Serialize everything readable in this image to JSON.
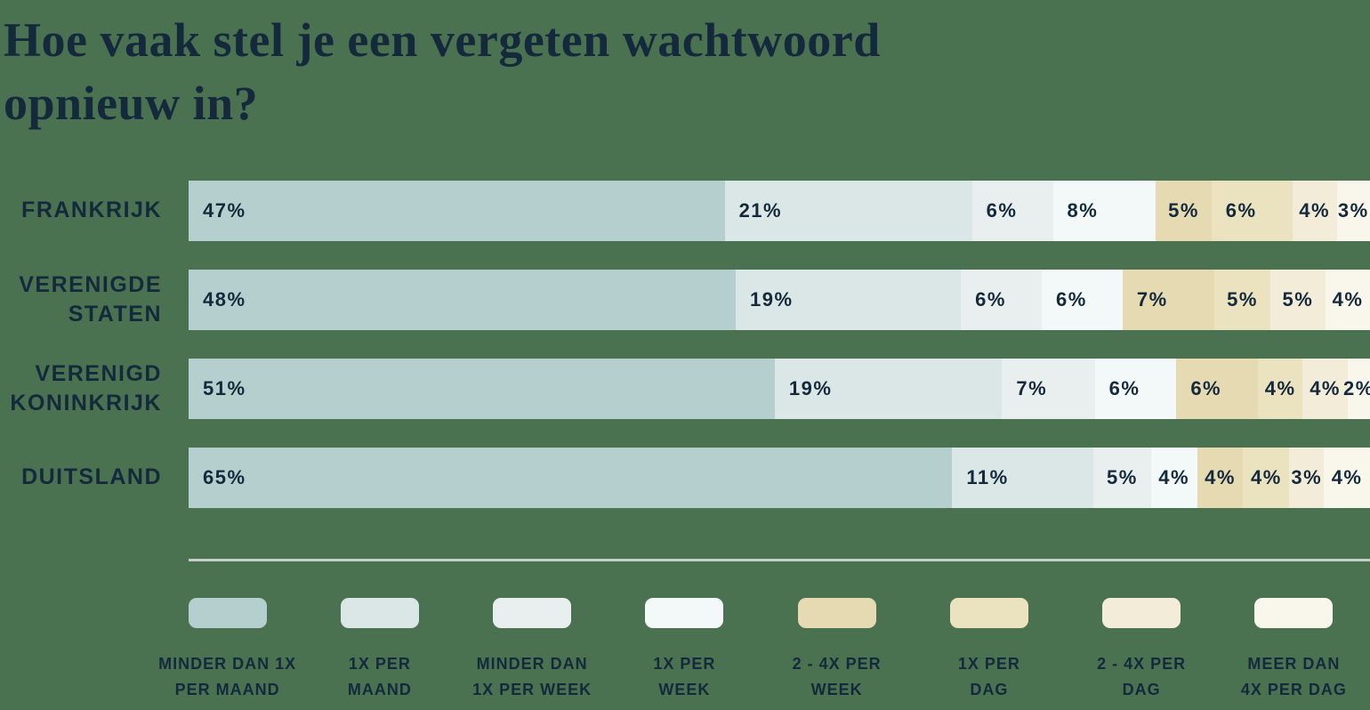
{
  "title": {
    "line1": "Hoe vaak stel je een vergeten wachtwoord",
    "line2": "opnieuw in?"
  },
  "background_color": "#4a7150",
  "text_color": "#142a3c",
  "divider_color": "#c6cdc7",
  "chart_data": {
    "type": "bar",
    "orientation": "horizontal",
    "stacked": true,
    "unit": "%",
    "value_suffix": "%",
    "grid": false,
    "legend_position": "bottom",
    "title": "Hoe vaak stel je een vergeten wachtwoord opnieuw in?",
    "categories": [
      "FRANKRIJK",
      "VERENIGDE STATEN",
      "VERENIGD KONINKRIJK",
      "DUITSLAND"
    ],
    "series": [
      {
        "name": "MINDER DAN 1X PER MAAND",
        "label_lines": [
          "MINDER DAN 1X",
          "PER MAAND"
        ],
        "color": "#b4cfcd",
        "values": [
          47,
          48,
          51,
          65
        ]
      },
      {
        "name": "1X PER MAAND",
        "label_lines": [
          "1X PER",
          "MAAND"
        ],
        "color": "#dbe7e6",
        "values": [
          21,
          19,
          19,
          11
        ]
      },
      {
        "name": "MINDER DAN 1X PER WEEK",
        "label_lines": [
          "MINDER DAN",
          "1X PER WEEK"
        ],
        "color": "#e9efee",
        "values": [
          6,
          6,
          7,
          5
        ]
      },
      {
        "name": "1X PER WEEK",
        "label_lines": [
          "1X PER",
          "WEEK"
        ],
        "color": "#f3f8f8",
        "values": [
          8,
          6,
          6,
          4
        ]
      },
      {
        "name": "2 - 4X PER WEEK",
        "label_lines": [
          "2 - 4X PER",
          "WEEK"
        ],
        "color": "#e5dab1",
        "values": [
          5,
          7,
          6,
          4
        ]
      },
      {
        "name": "1X PER DAG",
        "label_lines": [
          "1X PER",
          "DAG"
        ],
        "color": "#ebe3c0",
        "values": [
          6,
          5,
          4,
          4
        ]
      },
      {
        "name": "2 - 4X PER DAG",
        "label_lines": [
          "2 - 4X PER",
          "DAG"
        ],
        "color": "#f2ecd8",
        "values": [
          4,
          5,
          4,
          3
        ]
      },
      {
        "name": "MEER DAN 4X PER DAG",
        "label_lines": [
          "MEER DAN",
          "4X PER DAG"
        ],
        "color": "#f9f6eb",
        "values": [
          3,
          4,
          2,
          4
        ]
      }
    ]
  }
}
